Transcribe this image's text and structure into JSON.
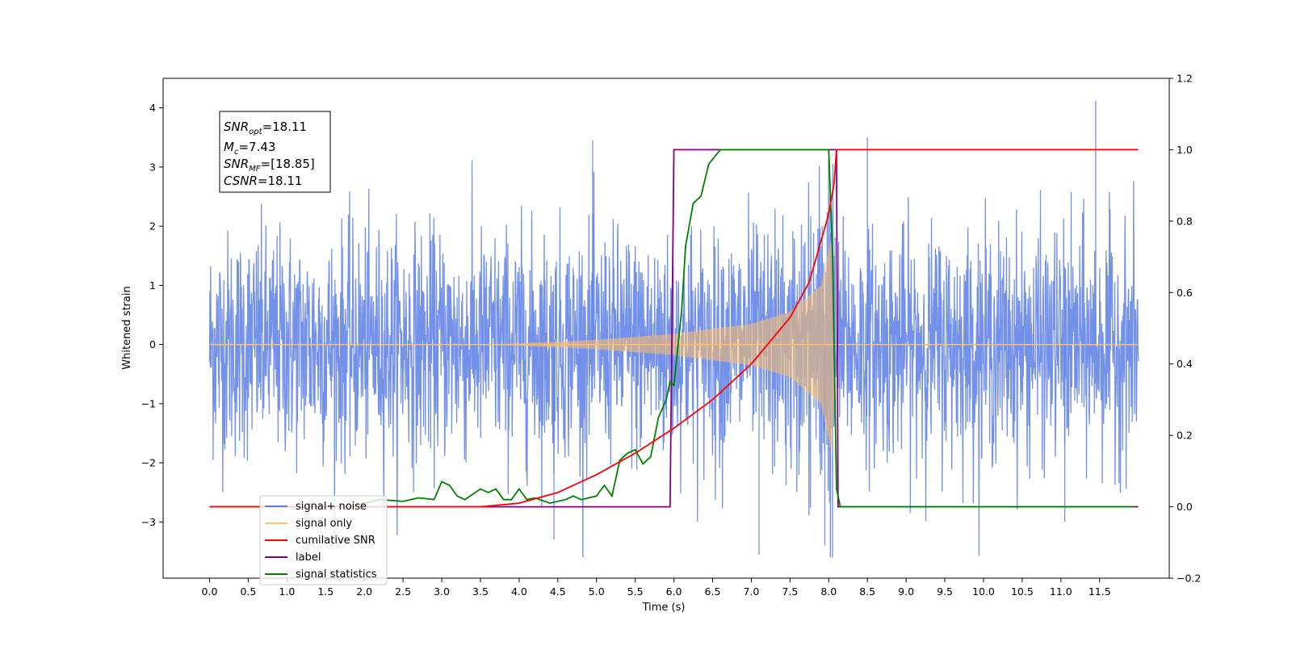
{
  "chart_data": {
    "type": "line",
    "title": "",
    "xlabel": "Time (s)",
    "ylabel": "Whitened strain",
    "y2label": "",
    "xlim": [
      -0.6,
      12.4
    ],
    "ylim": [
      -3.95,
      4.5
    ],
    "y2lim": [
      -0.2,
      1.2
    ],
    "xticks": [
      "0.0",
      "0.5",
      "1.0",
      "1.5",
      "2.0",
      "2.5",
      "3.0",
      "3.5",
      "4.0",
      "4.5",
      "5.0",
      "5.5",
      "6.0",
      "6.5",
      "7.0",
      "7.5",
      "8.0",
      "8.5",
      "9.0",
      "9.5",
      "10.0",
      "10.5",
      "11.0",
      "11.5"
    ],
    "yticks": [
      "−3",
      "−2",
      "−1",
      "0",
      "1",
      "2",
      "3",
      "4"
    ],
    "y2ticks": [
      "−0.2",
      "0.0",
      "0.2",
      "0.4",
      "0.6",
      "0.8",
      "1.0",
      "1.2"
    ],
    "grid": false,
    "legend_position": "lower-left",
    "info_box": {
      "line1_sym": "SNR",
      "line1_sub": "opt",
      "line1_val": "=18.11",
      "line2_sym": "M",
      "line2_sub": "c",
      "line2_val": "=7.43",
      "line3_sym": "SNR",
      "line3_sub": "MF",
      "line3_val": "=[18.85]",
      "line4_sym": "CSNR",
      "line4_val": "=18.11"
    },
    "series": [
      {
        "name": "signal+ noise",
        "color": "#5b7ee5",
        "axis": "left",
        "description": "noise amplitude ~1 std, spans t=0 to 12, peaks ~4.1 at t=11.45, min ~-3.55 at t=7.1"
      },
      {
        "name": "signal only",
        "color": "#ffbf66",
        "axis": "left",
        "chirp_start": 3.5,
        "chirp_end": 8.08,
        "amplitude_points": [
          [
            3.5,
            0.0
          ],
          [
            4.0,
            0.02
          ],
          [
            5.0,
            0.08
          ],
          [
            6.0,
            0.18
          ],
          [
            7.0,
            0.35
          ],
          [
            7.5,
            0.55
          ],
          [
            7.9,
            1.0
          ],
          [
            8.05,
            1.9
          ],
          [
            8.08,
            0.0
          ]
        ]
      },
      {
        "name": "cumilative SNR",
        "color": "#ff0000",
        "axis": "right",
        "points": [
          [
            0.0,
            0.0
          ],
          [
            3.5,
            0.0
          ],
          [
            4.0,
            0.01
          ],
          [
            4.5,
            0.04
          ],
          [
            5.0,
            0.09
          ],
          [
            5.5,
            0.15
          ],
          [
            6.0,
            0.22
          ],
          [
            6.5,
            0.3
          ],
          [
            7.0,
            0.4
          ],
          [
            7.5,
            0.53
          ],
          [
            7.75,
            0.63
          ],
          [
            8.0,
            0.82
          ],
          [
            8.08,
            0.92
          ],
          [
            8.1,
            1.0
          ],
          [
            12.0,
            1.0
          ]
        ]
      },
      {
        "name": "label",
        "color": "#800080",
        "axis": "right",
        "points": [
          [
            0.0,
            0.0
          ],
          [
            5.95,
            0.0
          ],
          [
            6.0,
            1.0
          ],
          [
            8.1,
            1.0
          ],
          [
            8.12,
            0.0
          ],
          [
            12.0,
            0.0
          ]
        ]
      },
      {
        "name": "signal statistics",
        "color": "#008000",
        "axis": "right",
        "points": [
          [
            0.0,
            0.0
          ],
          [
            1.8,
            0.0
          ],
          [
            2.0,
            0.01
          ],
          [
            2.2,
            0.02
          ],
          [
            2.5,
            0.015
          ],
          [
            2.7,
            0.025
          ],
          [
            2.9,
            0.02
          ],
          [
            3.0,
            0.07
          ],
          [
            3.1,
            0.06
          ],
          [
            3.2,
            0.03
          ],
          [
            3.3,
            0.02
          ],
          [
            3.5,
            0.05
          ],
          [
            3.6,
            0.04
          ],
          [
            3.7,
            0.05
          ],
          [
            3.8,
            0.02
          ],
          [
            3.9,
            0.02
          ],
          [
            4.0,
            0.05
          ],
          [
            4.1,
            0.02
          ],
          [
            4.2,
            0.025
          ],
          [
            4.4,
            0.01
          ],
          [
            4.6,
            0.02
          ],
          [
            4.7,
            0.03
          ],
          [
            4.8,
            0.02
          ],
          [
            5.0,
            0.03
          ],
          [
            5.1,
            0.06
          ],
          [
            5.2,
            0.03
          ],
          [
            5.3,
            0.13
          ],
          [
            5.4,
            0.15
          ],
          [
            5.5,
            0.16
          ],
          [
            5.6,
            0.12
          ],
          [
            5.7,
            0.14
          ],
          [
            5.8,
            0.25
          ],
          [
            5.9,
            0.3
          ],
          [
            5.95,
            0.35
          ],
          [
            6.0,
            0.34
          ],
          [
            6.1,
            0.55
          ],
          [
            6.15,
            0.73
          ],
          [
            6.25,
            0.85
          ],
          [
            6.35,
            0.87
          ],
          [
            6.45,
            0.96
          ],
          [
            6.6,
            1.0
          ],
          [
            7.0,
            1.0
          ],
          [
            7.9,
            1.0
          ],
          [
            8.0,
            1.0
          ],
          [
            8.05,
            0.7
          ],
          [
            8.1,
            0.05
          ],
          [
            8.15,
            0.0
          ],
          [
            11.95,
            0.0
          ]
        ]
      }
    ]
  }
}
